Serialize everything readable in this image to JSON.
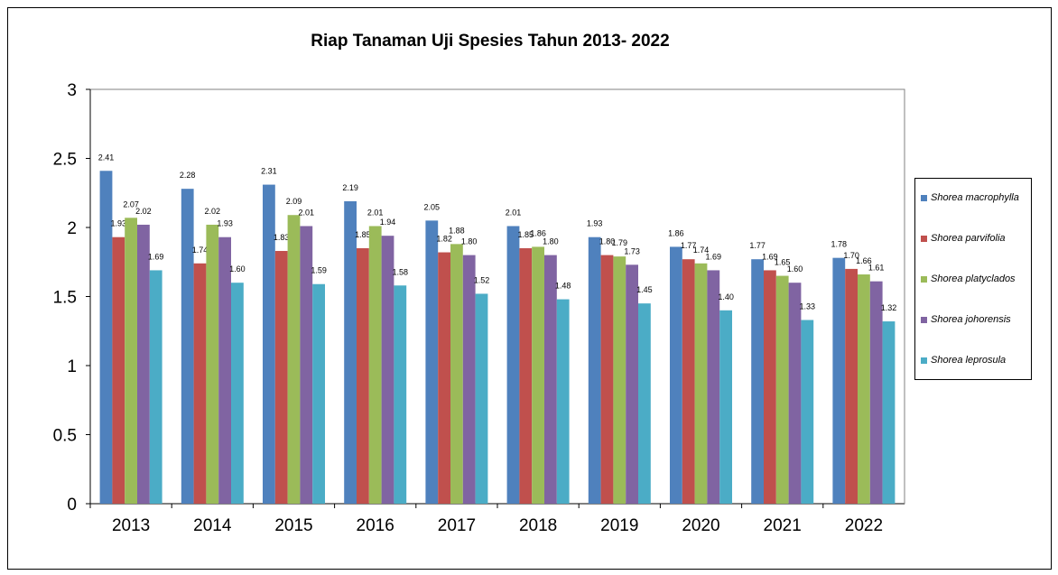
{
  "chart_data": {
    "type": "bar",
    "title": "Riap Tanaman Uji Spesies Tahun 2013- 2022",
    "xlabel": "",
    "ylabel": "",
    "ylim": [
      0,
      3
    ],
    "yticks": [
      "0",
      "0.5",
      "1",
      "1.5",
      "2",
      "2.5",
      "3"
    ],
    "grid": false,
    "legend_position": "right",
    "categories": [
      "2013",
      "2014",
      "2015",
      "2016",
      "2017",
      "2018",
      "2019",
      "2020",
      "2021",
      "2022"
    ],
    "series": [
      {
        "name": "Shorea macrophylla",
        "color": "#4F81BD",
        "values": [
          2.41,
          2.28,
          2.31,
          2.19,
          2.05,
          2.01,
          1.93,
          1.86,
          1.77,
          1.78
        ],
        "labels": [
          "2.41",
          "2.28",
          "2.31",
          "2.19",
          "2.05",
          "2.01",
          "1.93",
          "1.86",
          "1.77",
          "1.78"
        ]
      },
      {
        "name": "Shorea parvifolia",
        "color": "#C0504D",
        "values": [
          1.93,
          1.74,
          1.83,
          1.85,
          1.82,
          1.85,
          1.8,
          1.77,
          1.69,
          1.7
        ],
        "labels": [
          "1.93",
          "1.74",
          "1.83",
          "1.85",
          "1.82",
          "1.85",
          "1.80",
          "1.77",
          "1.69",
          "1.70"
        ]
      },
      {
        "name": "Shorea platyclados",
        "color": "#9BBB59",
        "values": [
          2.07,
          2.02,
          2.09,
          2.01,
          1.88,
          1.86,
          1.79,
          1.74,
          1.65,
          1.66
        ],
        "labels": [
          "2.07",
          "2.02",
          "2.09",
          "2.01",
          "1.88",
          "1.86",
          "1.79",
          "1.74",
          "1.65",
          "1.66"
        ]
      },
      {
        "name": "Shorea johorensis",
        "color": "#8064A2",
        "values": [
          2.02,
          1.93,
          2.01,
          1.94,
          1.8,
          1.8,
          1.73,
          1.69,
          1.6,
          1.61
        ],
        "labels": [
          "2.02",
          "1.93",
          "2.01",
          "1.94",
          "1.80",
          "1.80",
          "1.73",
          "1.69",
          "1.60",
          "1.61"
        ]
      },
      {
        "name": "Shorea leprosula",
        "color": "#4BACC6",
        "values": [
          1.69,
          1.6,
          1.59,
          1.58,
          1.52,
          1.48,
          1.45,
          1.4,
          1.33,
          1.32
        ],
        "labels": [
          "1.69",
          "1.60",
          "1.59",
          "1.58",
          "1.52",
          "1.48",
          "1.45",
          "1.40",
          "1.33",
          "1.32"
        ]
      }
    ]
  }
}
